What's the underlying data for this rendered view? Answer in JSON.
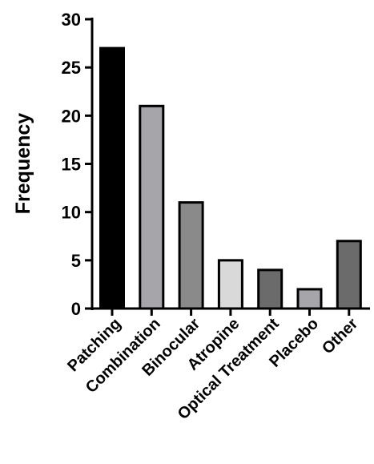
{
  "chart_data": {
    "type": "bar",
    "title": "",
    "xlabel": "",
    "ylabel": "Frequency",
    "ylim": [
      0,
      30
    ],
    "yticks": [
      "0",
      "5",
      "10",
      "15",
      "20",
      "25",
      "30"
    ],
    "grid": false,
    "legend": "none",
    "categories": [
      "Patching",
      "Combination",
      "Binocular",
      "Atropine",
      "Optical Treatment",
      "Placebo",
      "Other"
    ],
    "values": [
      27,
      21,
      11,
      5,
      4,
      2,
      7
    ],
    "bar_colors": [
      "#000000",
      "#a6a6aa",
      "#8a8a8a",
      "#d9d9d9",
      "#6b6b6b",
      "#a6a6aa",
      "#6b6b6b"
    ]
  }
}
